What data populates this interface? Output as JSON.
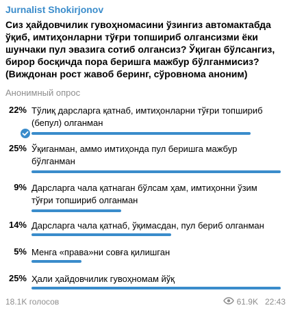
{
  "channel": {
    "name": "Jurnalist Shokirjonov"
  },
  "poll": {
    "question": "Сиз ҳайдовчилик гувоҳномасини ўзингиз автомактабда ўқиб, имтиҳонларни тўғри топшириб олгансизми ёки шунчаки пул эвазига сотиб олгансиз? Ўқиган бўлсангиз, бирор босқичда пора беришга мажбур бўлганмисиз? (Виждонан рост жавоб беринг, сўровнома аноним)",
    "type_label": "Анонимный опрос",
    "options": [
      {
        "percent_label": "22%",
        "percent": 22,
        "text": "Тўлиқ дарсларга қатнаб, имтиҳонларни тўғри топшириб (бепул) олганман",
        "chosen": true
      },
      {
        "percent_label": "25%",
        "percent": 25,
        "text": "Ўқиганман, аммо имтиҳонда пул беришга мажбур бўлганман",
        "chosen": false
      },
      {
        "percent_label": "9%",
        "percent": 9,
        "text": "Дарсларга чала қатнаган бўлсам ҳам, имтиҳонни ўзим тўғри топшириб олганман",
        "chosen": false
      },
      {
        "percent_label": "14%",
        "percent": 14,
        "text": "Дарсларга чала қатнаб, ўқимасдан, пул бериб олганман",
        "chosen": false
      },
      {
        "percent_label": "5%",
        "percent": 5,
        "text": "Менга «права»ни совға қилишган",
        "chosen": false
      },
      {
        "percent_label": "25%",
        "percent": 25,
        "text": "Ҳали ҳайдовчилик гувоҳномам йўқ",
        "chosen": false
      }
    ],
    "total_votes": "18.1K голосов",
    "views": "61.9K",
    "time": "22:43"
  },
  "colors": {
    "accent": "#3a8ccb",
    "muted": "#8d8d8d"
  },
  "icons": {
    "chosen": "check-circle-icon",
    "views": "eye-icon"
  }
}
